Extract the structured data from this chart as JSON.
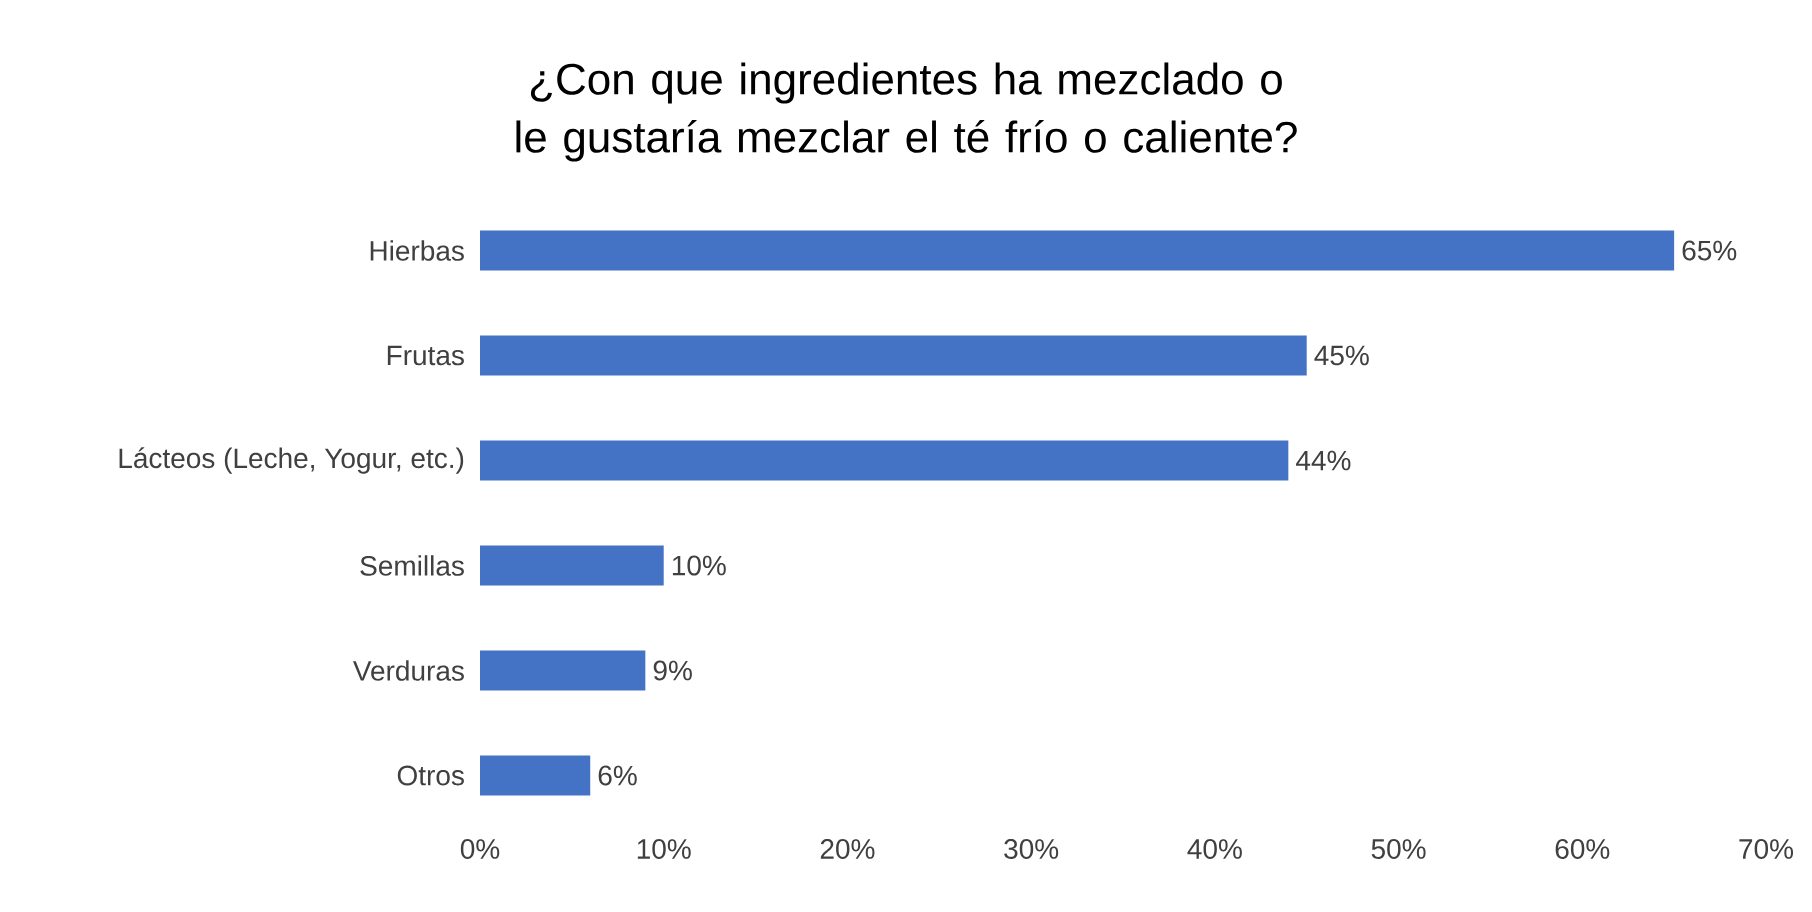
{
  "chart_data": {
    "type": "bar",
    "orientation": "horizontal",
    "title": "¿Con que ingredientes ha mezclado o le gustaría mezclar el té frío o caliente?",
    "categories": [
      "Hierbas",
      "Frutas",
      "Lácteos (Leche, Yogur, etc.)",
      "Semillas",
      "Verduras",
      "Otros"
    ],
    "values": [
      65,
      45,
      44,
      10,
      9,
      6
    ],
    "value_labels": [
      "65%",
      "45%",
      "44%",
      "10%",
      "9%",
      "6%"
    ],
    "color": "#4472c4",
    "xlim": [
      0,
      70
    ],
    "xticks": [
      {
        "value": 0,
        "label": "0%"
      },
      {
        "value": 10,
        "label": "10%"
      },
      {
        "value": 20,
        "label": "20%"
      },
      {
        "value": 30,
        "label": "30%"
      },
      {
        "value": 40,
        "label": "40%"
      },
      {
        "value": 50,
        "label": "50%"
      },
      {
        "value": 60,
        "label": "60%"
      },
      {
        "value": 70,
        "label": "70%"
      }
    ]
  }
}
